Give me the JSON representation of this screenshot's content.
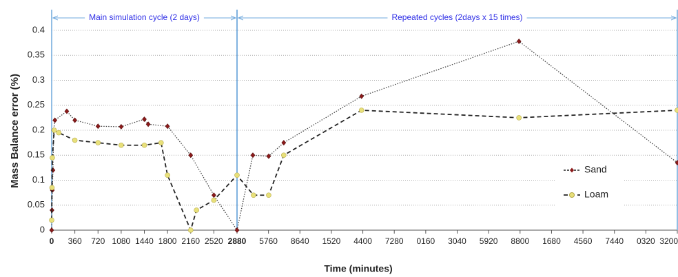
{
  "chart_data": {
    "type": "line",
    "ylabel": "Mass Balance error (%)",
    "xlabel": "Time (minutes)",
    "ylim": [
      0,
      0.4
    ],
    "yticks": [
      0,
      0.05,
      0.1,
      0.15,
      0.2,
      0.25,
      0.3,
      0.35,
      0.4
    ],
    "grid": true,
    "xlim": [
      0,
      43200
    ],
    "xaxis_segments": [
      {
        "xlim": [
          0,
          2880
        ],
        "label": "Main simulation cycle (2 days)"
      },
      {
        "xlim": [
          2880,
          43200
        ],
        "label": "Repeated cycles (2days x 15 times)"
      }
    ],
    "xticks": [
      0,
      360,
      720,
      1080,
      1440,
      1800,
      2160,
      2520,
      2880,
      5760,
      8640,
      {
        "value": 11520,
        "label": "1520"
      },
      {
        "value": 14400,
        "label": "4400"
      },
      {
        "value": 17280,
        "label": "7280"
      },
      {
        "value": 20160,
        "label": "0160"
      },
      {
        "value": 23040,
        "label": "3040"
      },
      {
        "value": 25920,
        "label": "5920"
      },
      {
        "value": 28800,
        "label": "8800"
      },
      {
        "value": 31680,
        "label": "1680"
      },
      {
        "value": 34560,
        "label": "4560"
      },
      {
        "value": 37440,
        "label": "7440"
      },
      {
        "value": 40320,
        "label": "0320"
      },
      {
        "value": 43200,
        "label": "3200"
      }
    ],
    "legend": "right",
    "series": [
      {
        "name": "Sand",
        "color": "#8b1a1a",
        "marker": "diamond",
        "x": [
          0,
          5,
          10,
          20,
          30,
          50,
          235,
          360,
          720,
          1080,
          1440,
          1500,
          1800,
          2160,
          2520,
          2880,
          4330,
          5780,
          7160,
          14280,
          28700,
          43200
        ],
        "values": [
          0,
          0.04,
          0.08,
          0.12,
          0.2,
          0.22,
          0.238,
          0.22,
          0.208,
          0.207,
          0.222,
          0.212,
          0.208,
          0.15,
          0.07,
          0,
          0.15,
          0.148,
          0.175,
          0.268,
          0.378,
          0.135
        ]
      },
      {
        "name": "Loam",
        "color": "#e8e07a",
        "marker": "circle",
        "x": [
          0,
          5,
          10,
          40,
          110,
          360,
          720,
          1080,
          1440,
          1700,
          1800,
          2160,
          2250,
          2520,
          2880,
          4390,
          5780,
          7160,
          14280,
          28700,
          43200
        ],
        "values": [
          0.02,
          0.085,
          0.145,
          0.2,
          0.195,
          0.18,
          0.175,
          0.17,
          0.17,
          0.175,
          0.11,
          0,
          0.04,
          0.06,
          0.11,
          0.07,
          0.07,
          0.15,
          0.24,
          0.225,
          0.24
        ]
      }
    ]
  }
}
